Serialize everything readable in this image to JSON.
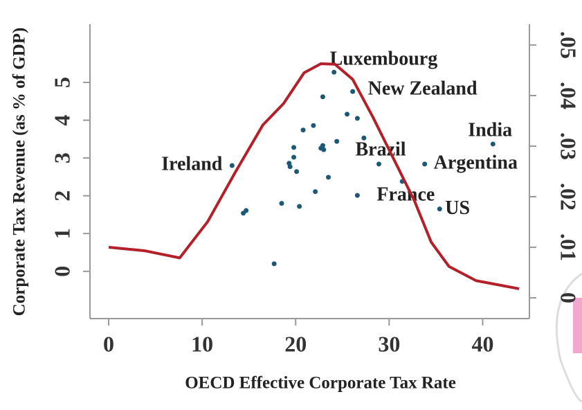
{
  "chart_data": {
    "type": "scatter",
    "x_label": "OECD Effective Corporate Tax Rate",
    "y_label": "Corporate Tax Revenue (as % of GDP)",
    "xlim": [
      -2,
      45
    ],
    "xticks": [
      0,
      10,
      20,
      30,
      40
    ],
    "ylim": [
      -1.25,
      6.54
    ],
    "yticks": [
      0,
      1,
      2,
      3,
      4,
      5
    ],
    "y2lim": [
      -0.0041,
      0.0541
    ],
    "y2ticks": [
      {
        "value": 0,
        "label": "0"
      },
      {
        "value": 0.01,
        "label": ".01"
      },
      {
        "value": 0.02,
        "label": ".02"
      },
      {
        "value": 0.03,
        "label": ".03"
      },
      {
        "value": 0.04,
        "label": ".04"
      },
      {
        "value": 0.05,
        "label": ".05"
      }
    ],
    "series": [
      {
        "type": "scatter",
        "color": "#1d5877",
        "x": [
          13.2,
          24.1,
          26.1,
          28.9,
          26.6,
          33.8,
          35.4,
          41.1,
          14.4,
          14.7,
          17.7,
          18.5,
          19.3,
          19.4,
          19.8,
          19.8,
          20.1,
          20.4,
          20.8,
          21.9,
          22.1,
          22.7,
          22.9,
          23.0,
          22.9,
          23.5,
          24.4,
          25.5,
          26.6,
          27.3,
          31.4
        ],
        "values": [
          2.8,
          5.27,
          4.76,
          2.84,
          2.01,
          2.84,
          1.65,
          3.37,
          1.54,
          1.61,
          0.2,
          1.8,
          2.86,
          2.77,
          3.02,
          3.28,
          2.64,
          1.72,
          3.74,
          3.86,
          2.11,
          3.26,
          3.33,
          3.22,
          4.62,
          2.49,
          3.44,
          4.16,
          4.05,
          3.53,
          2.38
        ],
        "labels": [
          "Ireland",
          "Luxembourg",
          "New Zealand",
          "Brazil",
          "France",
          "Argentina",
          "US",
          "India",
          null,
          null,
          null,
          null,
          null,
          null,
          null,
          null,
          null,
          null,
          null,
          null,
          null,
          null,
          null,
          null,
          null,
          null,
          null,
          null,
          null,
          null,
          null
        ]
      },
      {
        "type": "line",
        "axis": "y2",
        "color": "#b3202a",
        "x": [
          0,
          3.9,
          7.6,
          10.6,
          13.5,
          16.5,
          18.7,
          20.9,
          22.7,
          24.2,
          26.1,
          28.3,
          30.5,
          32.7,
          34.5,
          36.4,
          39.3,
          43.9
        ],
        "values": [
          0.01,
          0.0093,
          0.0079,
          0.0151,
          0.0247,
          0.0342,
          0.0384,
          0.0445,
          0.0463,
          0.0462,
          0.0432,
          0.0356,
          0.0274,
          0.0192,
          0.011,
          0.0062,
          0.0034,
          0.0018
        ]
      }
    ]
  }
}
